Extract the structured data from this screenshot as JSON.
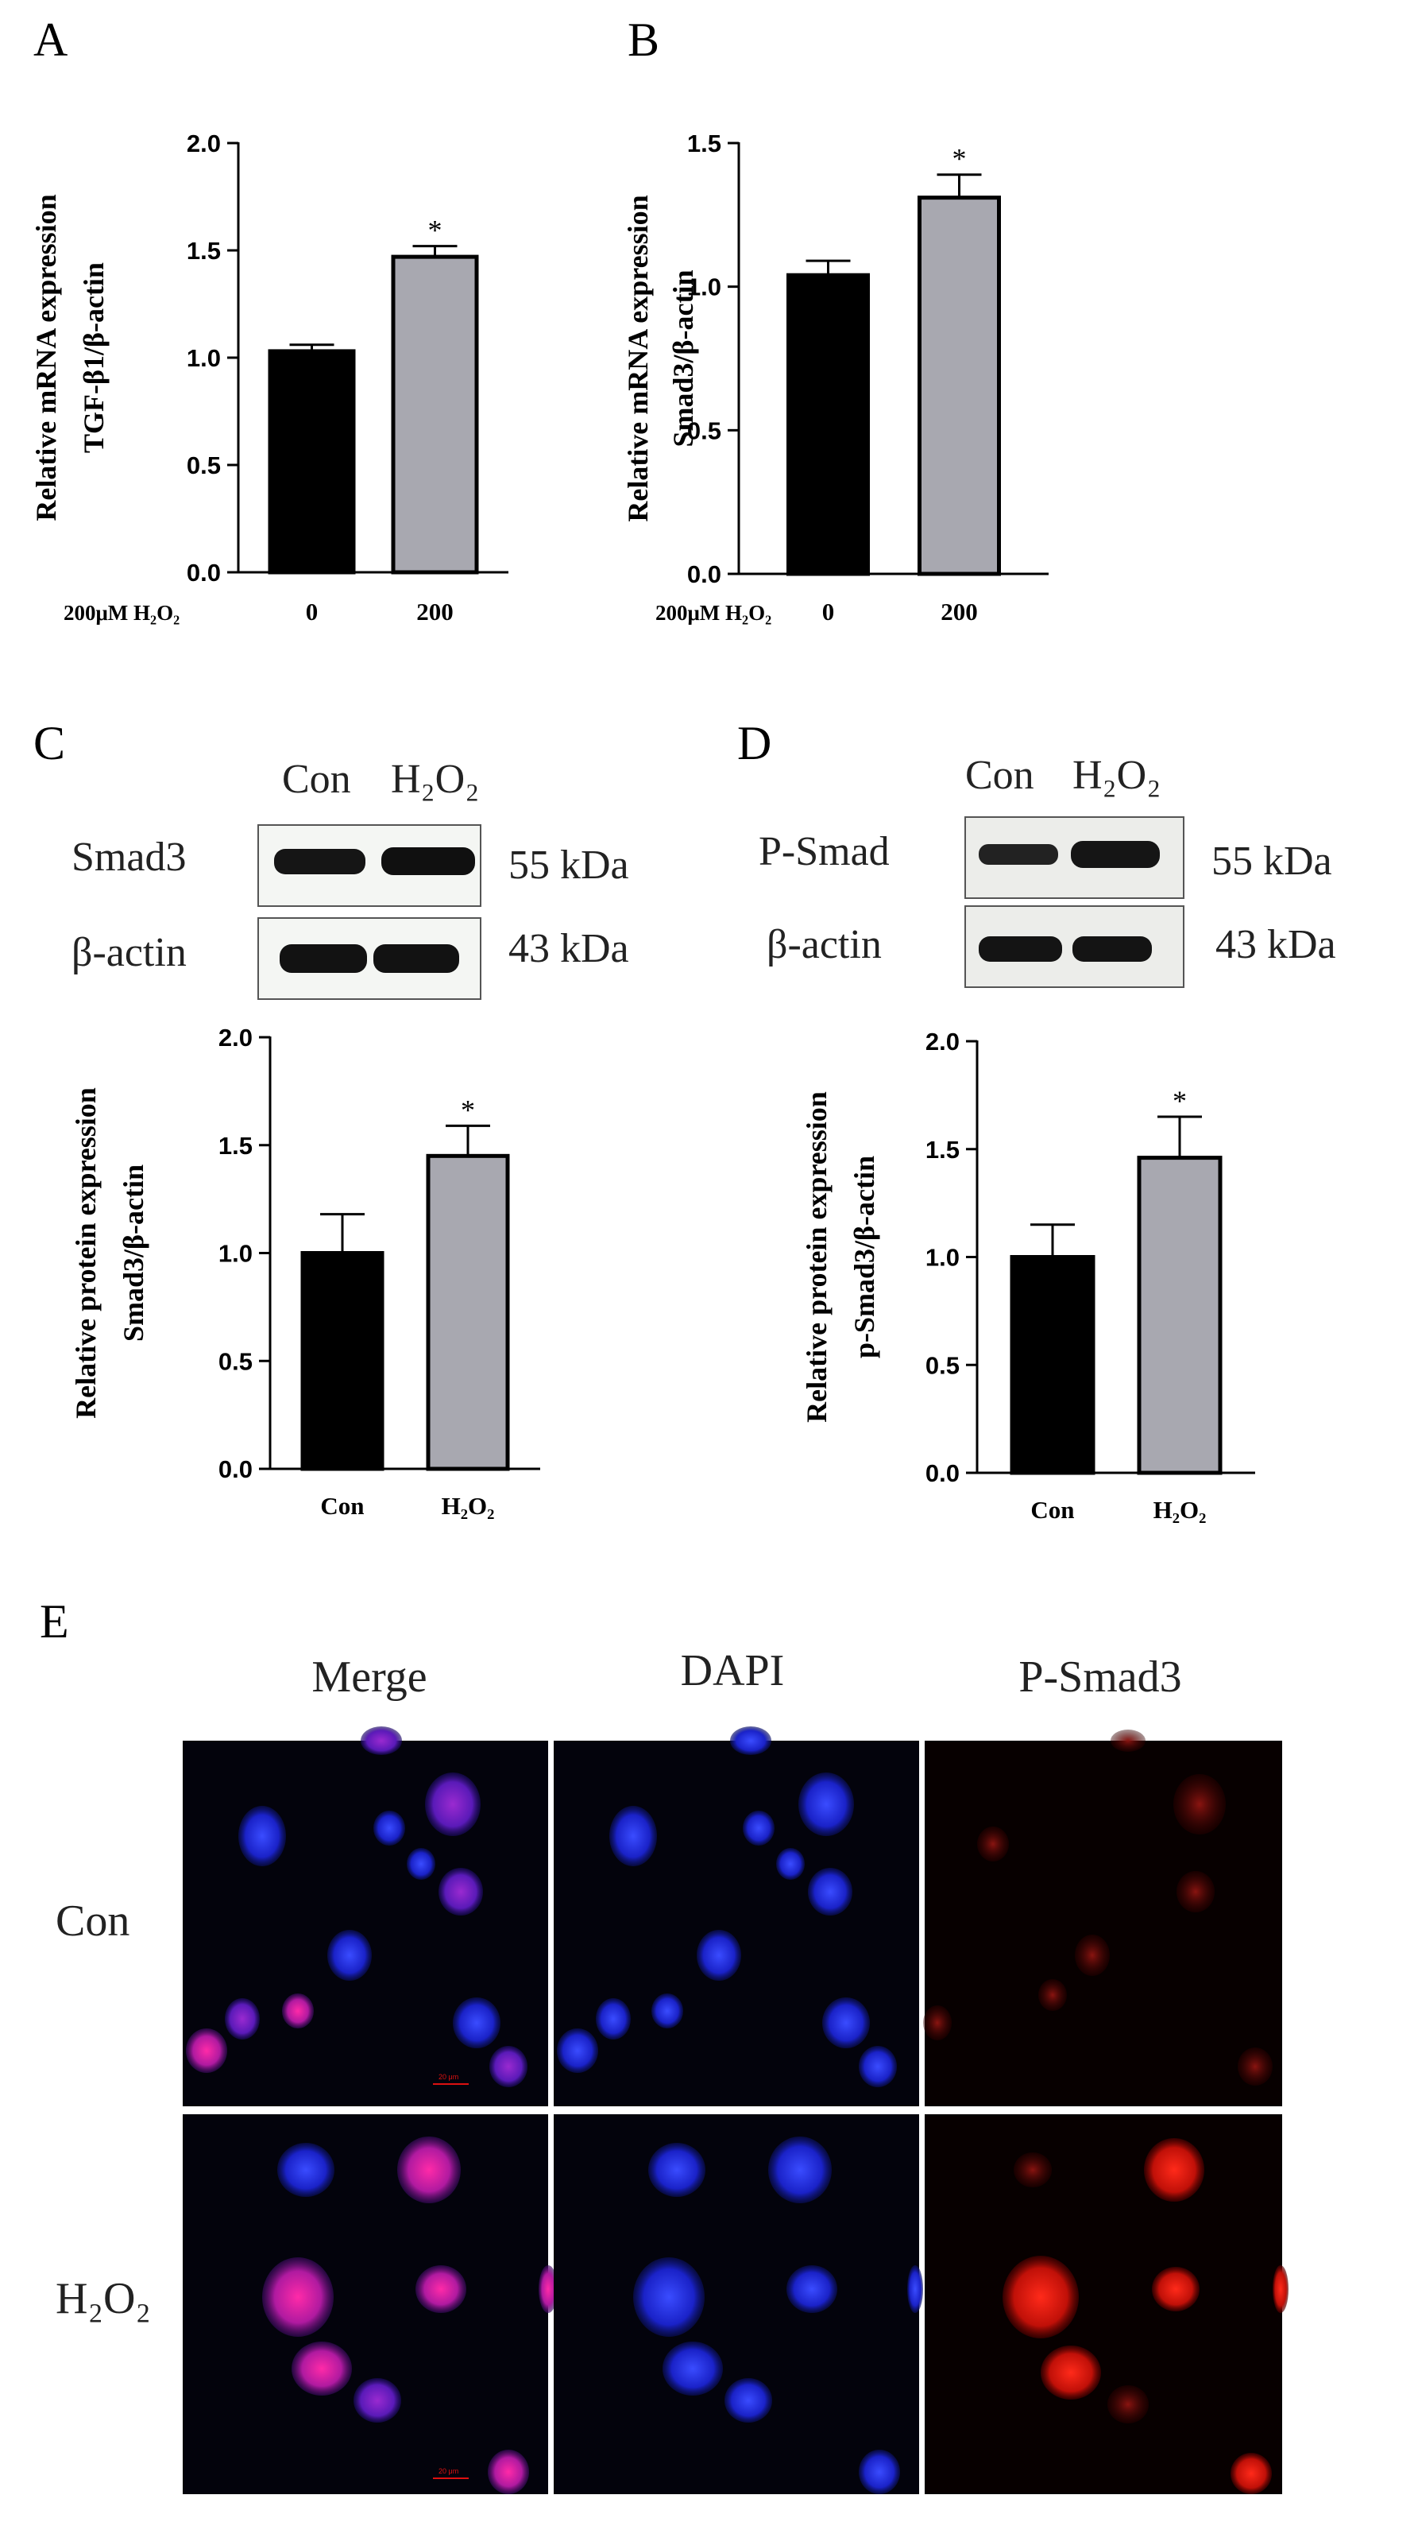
{
  "panels": {
    "A": "A",
    "B": "B",
    "C": "C",
    "D": "D",
    "E": "E"
  },
  "western_blots": [
    {
      "lane_labels": [
        "Con",
        "H₂O₂"
      ],
      "rows": [
        {
          "protein": "Smad3",
          "kda": "55 kDa"
        },
        {
          "protein": "β-actin",
          "kda": "43 kDa"
        }
      ]
    },
    {
      "lane_labels": [
        "Con",
        "H₂O₂"
      ],
      "rows": [
        {
          "protein": "P-Smad",
          "kda": "55 kDa"
        },
        {
          "protein": "β-actin",
          "kda": "43 kDa"
        }
      ]
    }
  ],
  "if_panel": {
    "columns": [
      "Merge",
      "DAPI",
      "P-Smad3"
    ],
    "rows": [
      "Con",
      "H₂O₂"
    ],
    "scale_bar": "20 μm"
  },
  "chart_data": [
    {
      "type": "bar",
      "panel": "A",
      "ylabel_lines": [
        "Relative mRNA expression",
        "TGF-β1/β-actin"
      ],
      "treatment_label": "200μM H₂O₂",
      "categories": [
        "0",
        "200"
      ],
      "values": [
        1.03,
        1.47
      ],
      "errors": [
        0.03,
        0.05
      ],
      "significance": [
        "",
        "*"
      ],
      "bar_colors": [
        "#000000",
        "#a8a8b0"
      ],
      "ylim": [
        0,
        2.0
      ],
      "yticks": [
        0.0,
        0.5,
        1.0,
        1.5,
        2.0
      ],
      "ytick_labels": [
        "0.0",
        "0.5",
        "1.0",
        "1.5",
        "2.0"
      ]
    },
    {
      "type": "bar",
      "panel": "B",
      "ylabel_lines": [
        "Relative mRNA expression",
        "Smad3/β-actin"
      ],
      "treatment_label": "200μM H₂O₂",
      "categories": [
        "0",
        "200"
      ],
      "values": [
        1.04,
        1.31
      ],
      "errors": [
        0.05,
        0.08
      ],
      "significance": [
        "",
        "*"
      ],
      "bar_colors": [
        "#000000",
        "#a8a8b0"
      ],
      "ylim": [
        0,
        1.5
      ],
      "yticks": [
        0.0,
        0.5,
        1.0,
        1.5
      ],
      "ytick_labels": [
        "0.0",
        "0.5",
        "1.0",
        "1.5"
      ]
    },
    {
      "type": "bar",
      "panel": "C",
      "ylabel_lines": [
        "Relative protein expression",
        "Smad3/β-actin"
      ],
      "treatment_label": "",
      "categories": [
        "Con",
        "H₂O₂"
      ],
      "values": [
        1.0,
        1.45
      ],
      "errors": [
        0.18,
        0.14
      ],
      "significance": [
        "",
        "*"
      ],
      "bar_colors": [
        "#000000",
        "#a8a8b0"
      ],
      "ylim": [
        0,
        2.0
      ],
      "yticks": [
        0.0,
        0.5,
        1.0,
        1.5,
        2.0
      ],
      "ytick_labels": [
        "0.0",
        "0.5",
        "1.0",
        "1.5",
        "2.0"
      ]
    },
    {
      "type": "bar",
      "panel": "D",
      "ylabel_lines": [
        "Relative protein expression",
        "p-Smad3/β-actin"
      ],
      "treatment_label": "",
      "categories": [
        "Con",
        "H₂O₂"
      ],
      "values": [
        1.0,
        1.46
      ],
      "errors": [
        0.15,
        0.19
      ],
      "significance": [
        "",
        "*"
      ],
      "bar_colors": [
        "#000000",
        "#a8a8b0"
      ],
      "ylim": [
        0,
        2.0
      ],
      "yticks": [
        0.0,
        0.5,
        1.0,
        1.5,
        2.0
      ],
      "ytick_labels": [
        "0.0",
        "0.5",
        "1.0",
        "1.5",
        "2.0"
      ]
    }
  ]
}
